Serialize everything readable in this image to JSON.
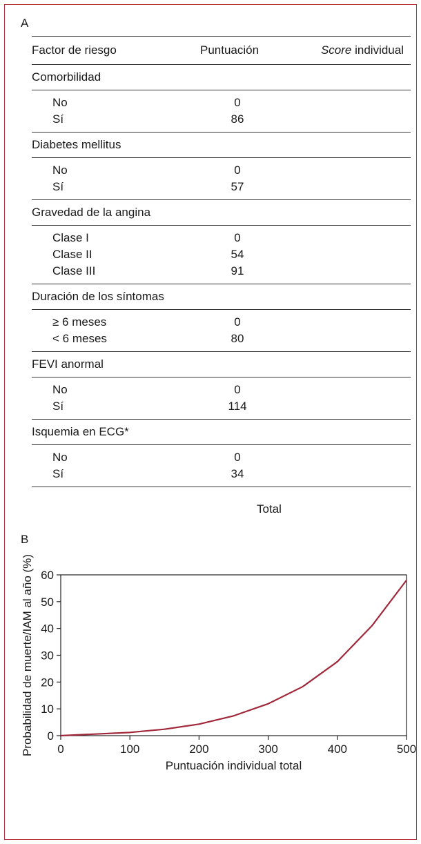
{
  "panel_a_label": "A",
  "panel_b_label": "B",
  "table": {
    "headers": {
      "factor": "Factor de riesgo",
      "points": "Puntuación",
      "score_em": "Score",
      "score_rest": " individual"
    },
    "groups": [
      {
        "title": "Comorbilidad",
        "options": [
          {
            "label": "No",
            "points": "0"
          },
          {
            "label": "Sí",
            "points": "86"
          }
        ]
      },
      {
        "title": "Diabetes mellitus",
        "options": [
          {
            "label": "No",
            "points": "0"
          },
          {
            "label": "Sí",
            "points": "57"
          }
        ]
      },
      {
        "title": "Gravedad de la angina",
        "options": [
          {
            "label": "Clase I",
            "points": "0"
          },
          {
            "label": "Clase II",
            "points": "54"
          },
          {
            "label": "Clase III",
            "points": "91"
          }
        ]
      },
      {
        "title": "Duración de los síntomas",
        "options": [
          {
            "label": "≥ 6 meses",
            "points": "0"
          },
          {
            "label": "< 6 meses",
            "points": "80"
          }
        ]
      },
      {
        "title": "FEVI anormal",
        "options": [
          {
            "label": "No",
            "points": "0"
          },
          {
            "label": "Sí",
            "points": "114"
          }
        ]
      },
      {
        "title": "Isquemia en ECG*",
        "options": [
          {
            "label": "No",
            "points": "0"
          },
          {
            "label": "Sí",
            "points": "34"
          }
        ]
      }
    ],
    "total_label": "Total"
  },
  "chart_data": {
    "type": "line",
    "xlabel": "Puntuación individual total",
    "ylabel": "Probabilidad de muerte/IAM al año (%)",
    "xlim": [
      0,
      500
    ],
    "ylim": [
      0,
      60
    ],
    "xticks": [
      "0",
      "100",
      "200",
      "300",
      "400",
      "500"
    ],
    "yticks": [
      "0",
      "10",
      "20",
      "30",
      "40",
      "50",
      "60"
    ],
    "grid": false,
    "series": [
      {
        "color": "#a1283a",
        "x": [
          0,
          50,
          100,
          150,
          200,
          250,
          300,
          350,
          400,
          450,
          500
        ],
        "y": [
          0,
          0.6,
          1.2,
          2.4,
          4.3,
          7.4,
          11.9,
          18.3,
          27.6,
          41.0,
          58.0
        ]
      }
    ]
  }
}
